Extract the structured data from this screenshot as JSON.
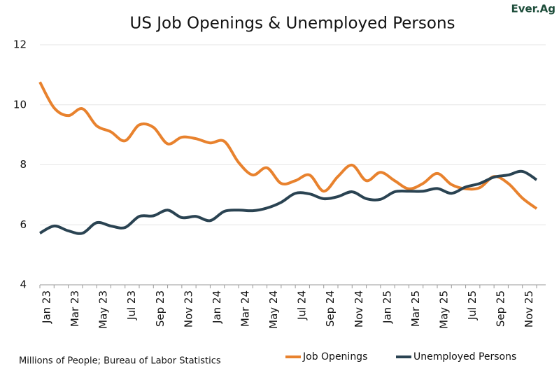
{
  "logo": "Ever.Ag",
  "chart_data": {
    "type": "line",
    "title": "US Job Openings & Unemployed Persons",
    "note": "Millions of People; Bureau of Labor Statistics",
    "categories": [
      "Jan 23",
      null,
      "Mar 23",
      null,
      "May 23",
      null,
      "Jul 23",
      null,
      "Sep 23",
      null,
      "Nov 23",
      null,
      "Jan 24",
      null,
      "Mar 24",
      null,
      "May 24",
      null,
      "Jul 24",
      null,
      "Sep 24",
      null,
      "Nov 24",
      null,
      "Jan 25",
      null,
      "Mar 25",
      null,
      "May 25",
      null,
      "Jul 25",
      null,
      "Sep 25",
      null,
      "Nov 25",
      null
    ],
    "series": [
      {
        "name": "Job Openings",
        "color": "#e8822e",
        "values": [
          10.76,
          9.9,
          9.64,
          9.87,
          9.3,
          9.1,
          8.8,
          9.33,
          9.25,
          8.7,
          8.92,
          8.87,
          8.73,
          8.78,
          8.08,
          7.66,
          7.9,
          7.38,
          7.47,
          7.66,
          7.12,
          7.61,
          7.99,
          7.47,
          7.75,
          7.47,
          7.2,
          7.38,
          7.71,
          7.34,
          7.2,
          7.24,
          7.61,
          7.38,
          6.89,
          6.54
        ]
      },
      {
        "name": "Unemployed Persons",
        "color": "#2a4352",
        "values": [
          5.72,
          5.96,
          5.8,
          5.72,
          6.07,
          5.96,
          5.91,
          6.28,
          6.3,
          6.49,
          6.24,
          6.28,
          6.14,
          6.45,
          6.49,
          6.47,
          6.56,
          6.75,
          7.05,
          7.03,
          6.87,
          6.94,
          7.1,
          6.87,
          6.85,
          7.1,
          7.12,
          7.12,
          7.21,
          7.05,
          7.26,
          7.38,
          7.59,
          7.66,
          7.78,
          7.5
        ]
      }
    ],
    "ylim": [
      4,
      12
    ],
    "yticks": [
      4,
      6,
      8,
      10,
      12
    ],
    "grid": true,
    "legend": "bottom"
  }
}
